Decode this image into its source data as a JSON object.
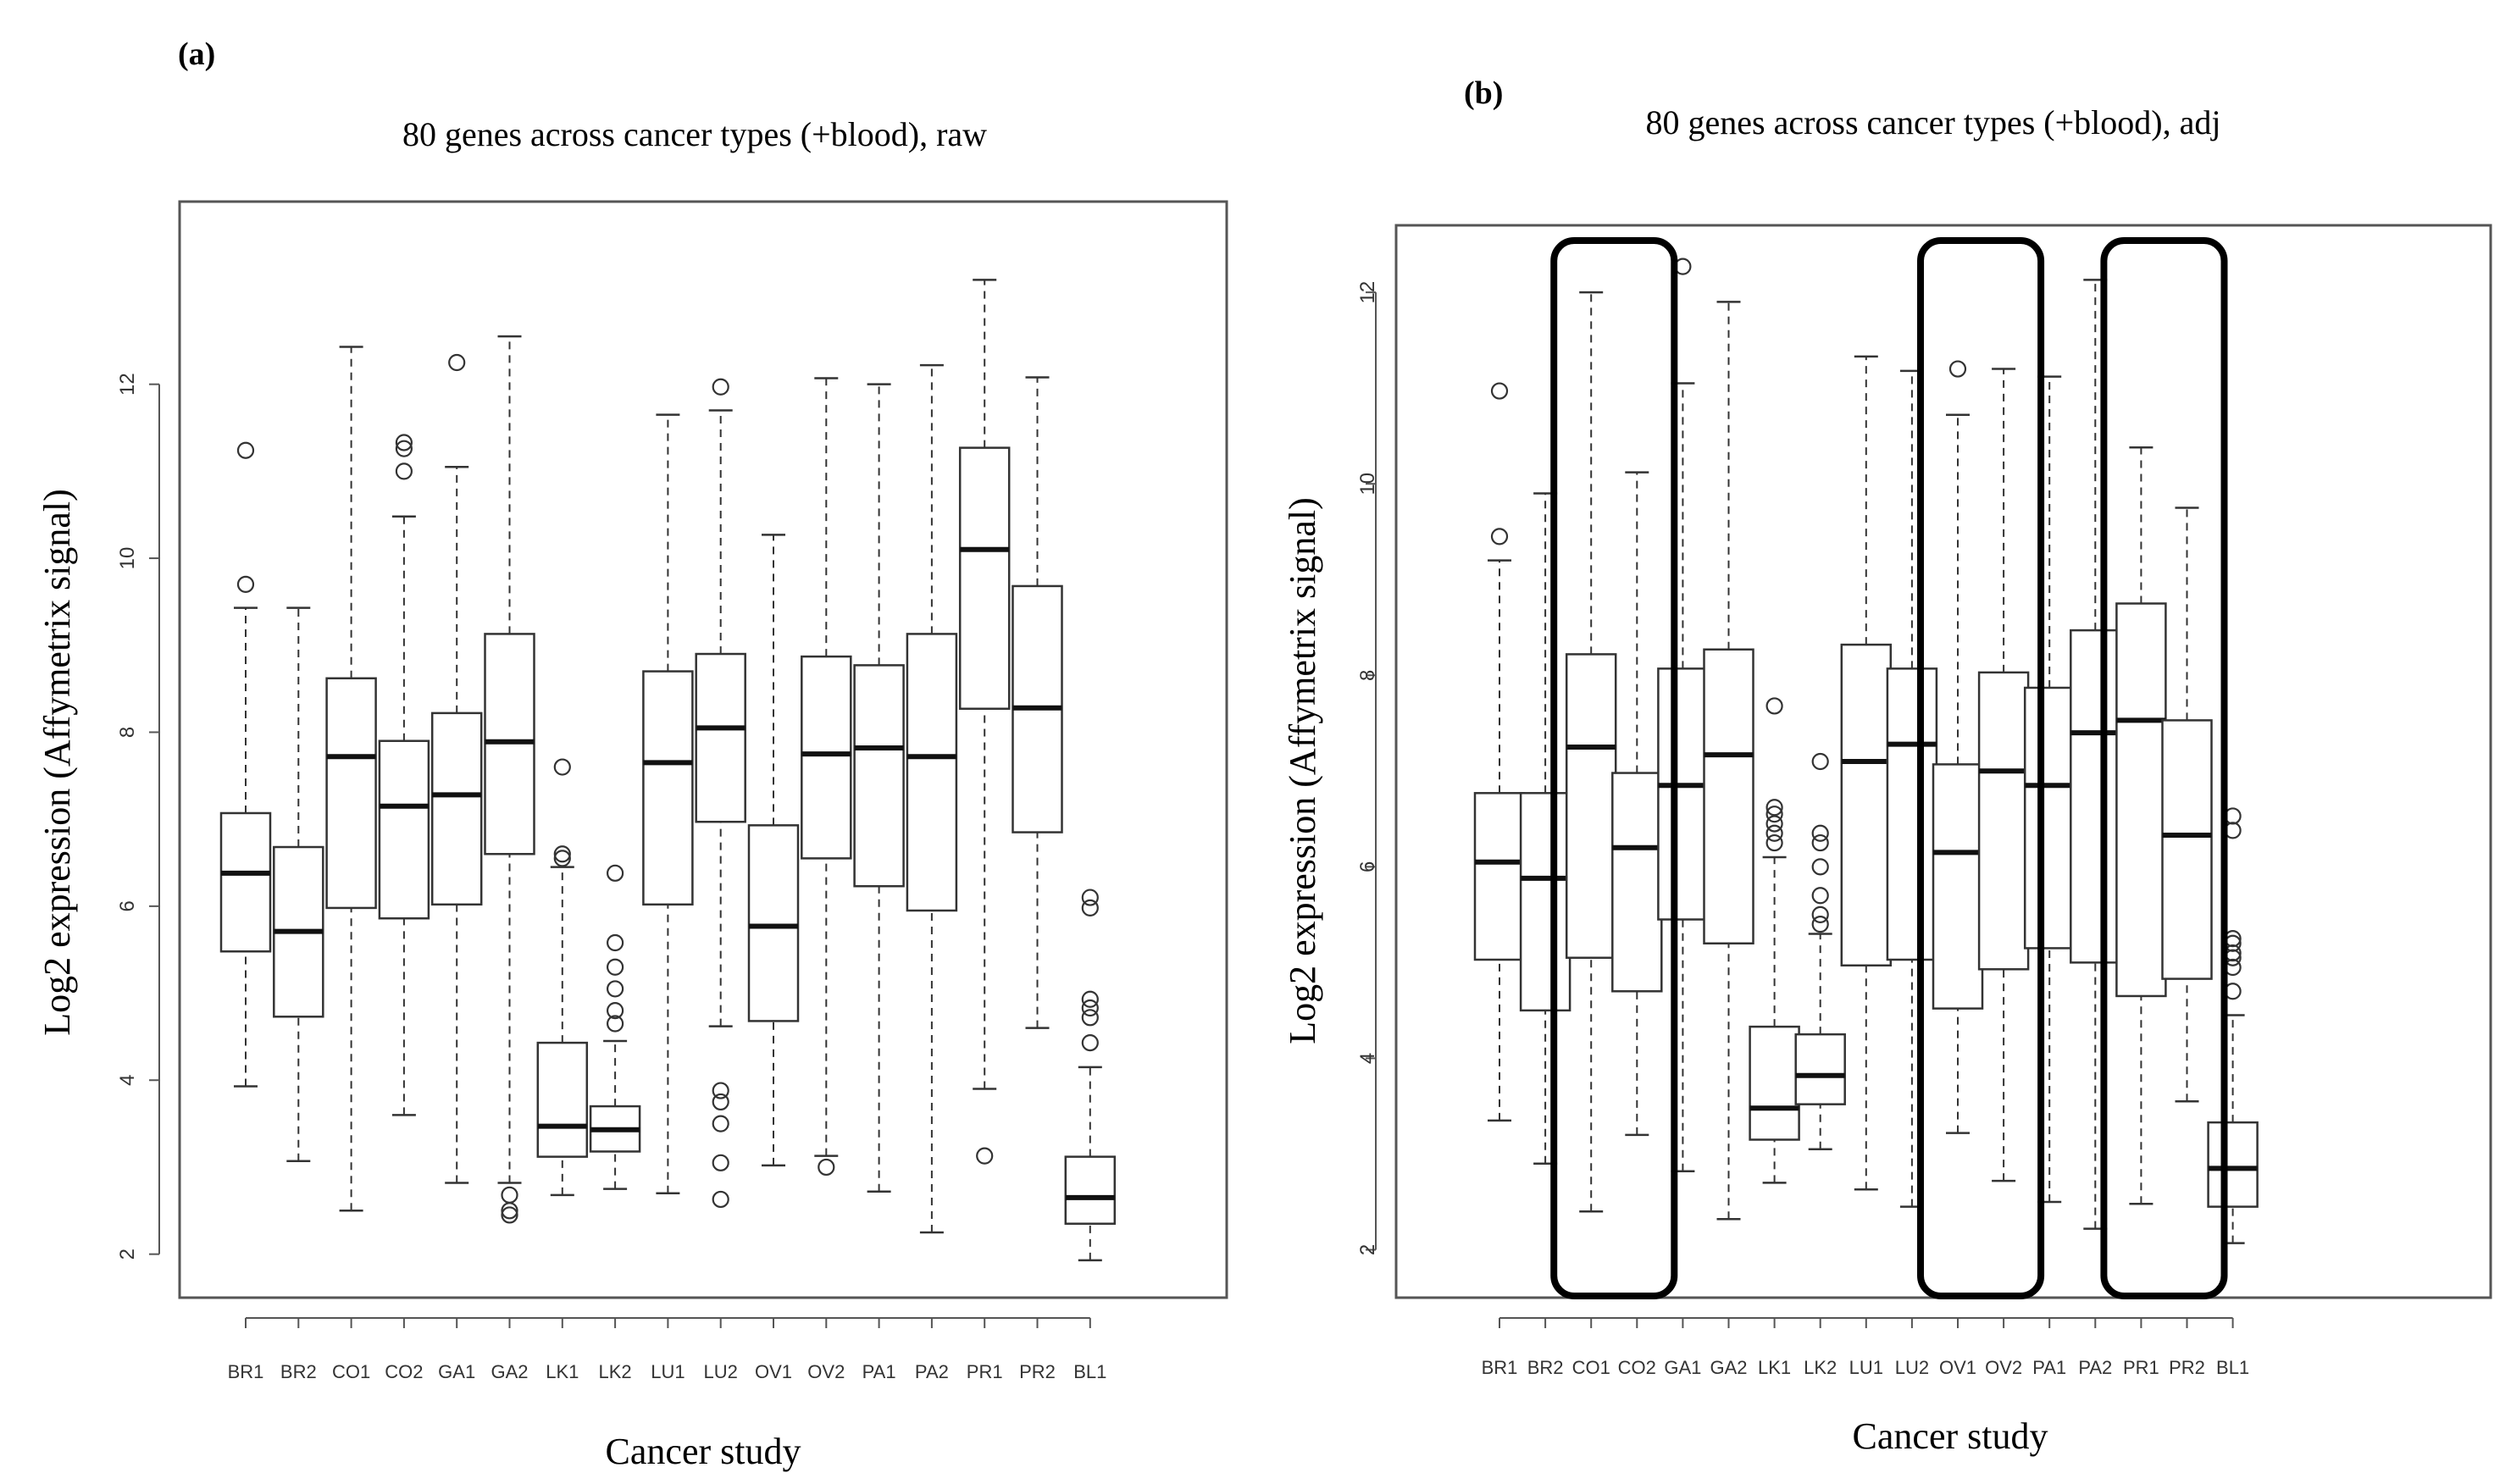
{
  "chart_data": [
    {
      "type": "boxplot",
      "panel_label": "(a)",
      "title": "80 genes across cancer types (+blood), raw",
      "xlabel": "Cancer study",
      "ylabel": "Log2 expression (Affymetrix signal)",
      "ylim": [
        1.5,
        14.1
      ],
      "yticks": [
        2,
        4,
        6,
        8,
        10,
        12
      ],
      "categories": [
        "BR1",
        "BR2",
        "CO1",
        "CO2",
        "GA1",
        "GA2",
        "LK1",
        "LK2",
        "LU1",
        "LU2",
        "OV1",
        "OV2",
        "PA1",
        "PA2",
        "PR1",
        "PR2",
        "BL1"
      ],
      "boxes": [
        {
          "min": 3.93,
          "q1": 5.48,
          "median": 6.38,
          "q3": 7.07,
          "max": 9.43,
          "outliers": [
            9.7,
            11.24
          ]
        },
        {
          "min": 3.07,
          "q1": 4.73,
          "median": 5.71,
          "q3": 6.68,
          "max": 9.43,
          "outliers": []
        },
        {
          "min": 2.5,
          "q1": 5.98,
          "median": 7.72,
          "q3": 8.62,
          "max": 12.43,
          "outliers": []
        },
        {
          "min": 3.6,
          "q1": 5.86,
          "median": 7.15,
          "q3": 7.9,
          "max": 10.48,
          "outliers": [
            11.0,
            11.26,
            11.33
          ]
        },
        {
          "min": 2.82,
          "q1": 6.02,
          "median": 7.28,
          "q3": 8.22,
          "max": 11.05,
          "outliers": [
            12.25
          ]
        },
        {
          "min": 2.82,
          "q1": 6.6,
          "median": 7.89,
          "q3": 9.13,
          "max": 12.55,
          "outliers": [
            2.45,
            2.5,
            2.68
          ]
        },
        {
          "min": 2.68,
          "q1": 3.12,
          "median": 3.47,
          "q3": 4.43,
          "max": 6.45,
          "outliers": [
            6.55,
            6.6,
            7.6
          ]
        },
        {
          "min": 2.75,
          "q1": 3.18,
          "median": 3.43,
          "q3": 3.7,
          "max": 4.45,
          "outliers": [
            4.65,
            4.8,
            5.05,
            5.3,
            5.58,
            6.38
          ]
        },
        {
          "min": 2.7,
          "q1": 6.02,
          "median": 7.65,
          "q3": 8.7,
          "max": 11.65,
          "outliers": []
        },
        {
          "min": 4.62,
          "q1": 6.97,
          "median": 8.05,
          "q3": 8.9,
          "max": 11.7,
          "outliers": [
            2.63,
            3.05,
            3.5,
            3.75,
            3.88,
            11.97
          ]
        },
        {
          "min": 3.02,
          "q1": 4.68,
          "median": 5.77,
          "q3": 6.93,
          "max": 10.27,
          "outliers": []
        },
        {
          "min": 3.13,
          "q1": 6.55,
          "median": 7.75,
          "q3": 8.87,
          "max": 12.07,
          "outliers": [
            3.0
          ]
        },
        {
          "min": 2.72,
          "q1": 6.23,
          "median": 7.82,
          "q3": 8.77,
          "max": 12.0,
          "outliers": []
        },
        {
          "min": 2.25,
          "q1": 5.95,
          "median": 7.72,
          "q3": 9.13,
          "max": 12.22,
          "outliers": []
        },
        {
          "min": 3.9,
          "q1": 8.27,
          "median": 10.1,
          "q3": 11.27,
          "max": 13.2,
          "outliers": [
            3.13
          ]
        },
        {
          "min": 4.6,
          "q1": 6.85,
          "median": 8.28,
          "q3": 9.68,
          "max": 12.08,
          "outliers": []
        },
        {
          "min": 1.93,
          "q1": 2.35,
          "median": 2.65,
          "q3": 3.12,
          "max": 4.15,
          "outliers": [
            4.43,
            4.72,
            4.83,
            4.93,
            5.98,
            6.1
          ]
        }
      ]
    },
    {
      "type": "boxplot",
      "panel_label": "(b)",
      "title": "80 genes across cancer types (+blood), adj",
      "xlabel": "Cancer study",
      "ylabel": "Log2 expression (Affymetrix signal)",
      "ylim": [
        1.5,
        12.7
      ],
      "yticks": [
        2,
        4,
        6,
        8,
        10,
        12
      ],
      "categories": [
        "BR1",
        "BR2",
        "CO1",
        "CO2",
        "GA1",
        "GA2",
        "LK1",
        "LK2",
        "LU1",
        "LU2",
        "OV1",
        "OV2",
        "PA1",
        "PA2",
        "PR1",
        "PR2",
        "BL1"
      ],
      "highlight_groups": [
        [
          "CO1",
          "CO2"
        ],
        [
          "OV1",
          "OV2"
        ],
        [
          "PR1",
          "PR2"
        ]
      ],
      "boxes": [
        {
          "min": 3.35,
          "q1": 5.03,
          "median": 6.05,
          "q3": 6.77,
          "max": 9.2,
          "outliers": [
            9.45,
            10.97
          ]
        },
        {
          "min": 2.9,
          "q1": 4.5,
          "median": 5.88,
          "q3": 6.77,
          "max": 9.9,
          "outliers": []
        },
        {
          "min": 2.4,
          "q1": 5.05,
          "median": 7.25,
          "q3": 8.22,
          "max": 12.0,
          "outliers": []
        },
        {
          "min": 3.2,
          "q1": 4.7,
          "median": 6.2,
          "q3": 6.98,
          "max": 10.12,
          "outliers": []
        },
        {
          "min": 2.82,
          "q1": 5.45,
          "median": 6.85,
          "q3": 8.07,
          "max": 11.05,
          "outliers": [
            12.27
          ]
        },
        {
          "min": 2.32,
          "q1": 5.2,
          "median": 7.17,
          "q3": 8.27,
          "max": 11.9,
          "outliers": []
        },
        {
          "min": 2.7,
          "q1": 3.15,
          "median": 3.48,
          "q3": 4.33,
          "max": 6.1,
          "outliers": [
            6.25,
            6.35,
            6.45,
            6.55,
            6.62,
            7.68
          ]
        },
        {
          "min": 3.05,
          "q1": 3.52,
          "median": 3.82,
          "q3": 4.25,
          "max": 5.3,
          "outliers": [
            5.4,
            5.5,
            5.7,
            6.0,
            6.25,
            6.35,
            7.1
          ]
        },
        {
          "min": 2.63,
          "q1": 4.97,
          "median": 7.1,
          "q3": 8.32,
          "max": 11.33,
          "outliers": []
        },
        {
          "min": 2.45,
          "q1": 5.03,
          "median": 7.28,
          "q3": 8.07,
          "max": 11.18,
          "outliers": []
        },
        {
          "min": 3.22,
          "q1": 4.52,
          "median": 6.15,
          "q3": 7.07,
          "max": 10.72,
          "outliers": [
            11.2
          ]
        },
        {
          "min": 2.72,
          "q1": 4.93,
          "median": 7.0,
          "q3": 8.03,
          "max": 11.2,
          "outliers": []
        },
        {
          "min": 2.5,
          "q1": 5.15,
          "median": 6.85,
          "q3": 7.87,
          "max": 11.12,
          "outliers": []
        },
        {
          "min": 2.22,
          "q1": 5.0,
          "median": 7.4,
          "q3": 8.47,
          "max": 12.13,
          "outliers": []
        },
        {
          "min": 2.48,
          "q1": 4.65,
          "median": 7.53,
          "q3": 8.75,
          "max": 10.38,
          "outliers": []
        },
        {
          "min": 3.55,
          "q1": 4.83,
          "median": 6.33,
          "q3": 7.53,
          "max": 9.75,
          "outliers": []
        },
        {
          "min": 2.07,
          "q1": 2.45,
          "median": 2.85,
          "q3": 3.33,
          "max": 4.45,
          "outliers": [
            4.7,
            4.95,
            5.05,
            5.1,
            5.2,
            5.25,
            6.38,
            6.53
          ]
        }
      ]
    }
  ]
}
